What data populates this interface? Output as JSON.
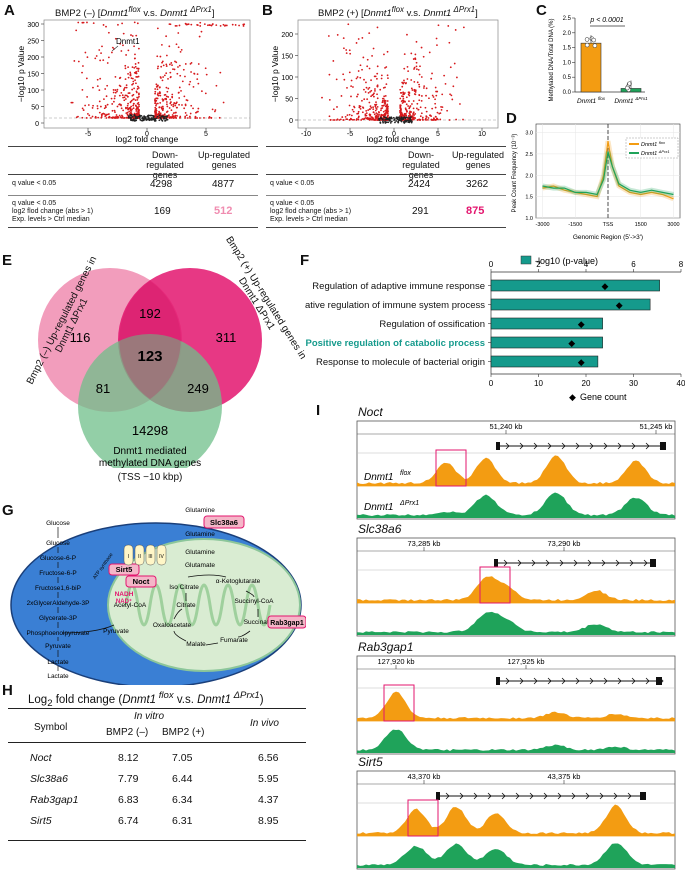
{
  "panel_labels": {
    "A": "A",
    "B": "B",
    "C": "C",
    "D": "D",
    "E": "E",
    "F": "F",
    "G": "G",
    "H": "H",
    "I": "I"
  },
  "colors": {
    "red": "#d7191c",
    "orange": "#f39c12",
    "green": "#1fa35a",
    "teal": "#159a8c",
    "pink": "#f08cb0",
    "magenta": "#e3156e",
    "olive": "#6fbf8a",
    "blue_cell": "#3a7fd4",
    "mito": "#cfe8c8"
  },
  "panelA": {
    "title_prefix": "BMP2 (–) [",
    "title_gene1": "Dnmt1",
    "title_sup1": "flox",
    "title_vs": " v.s. ",
    "title_gene2": "Dnmt1",
    "title_sup2": " ΔPrx1",
    "title_suffix": "]",
    "ylabel": "−log10 p Value",
    "xlabel": "log2 fold change",
    "annotation": "Dnmt1",
    "yticks": [
      "300",
      "250",
      "200",
      "150",
      "100",
      "50",
      "0"
    ],
    "xticks": [
      "-5",
      "0",
      "5"
    ],
    "col1": "Down-regulated genes",
    "col2": "Up-regulated genes",
    "row1": "q value < 0.05",
    "row2a": "q value < 0.05",
    "row2b": "log2 flod change (abs > 1)",
    "row2c": "Exp. levels > Ctrl median",
    "v11": "4298",
    "v12": "4877",
    "v21": "169",
    "v22": "512"
  },
  "panelB": {
    "title_prefix": "BMP2 (+) [",
    "title_gene1": "Dnmt1",
    "title_sup1": "flox",
    "title_vs": " v.s. ",
    "title_gene2": "Dnmt1",
    "title_sup2": " ΔPrx1",
    "title_suffix": "]",
    "ylabel": "−log10 p Value",
    "xlabel": "log2 fold change",
    "yticks": [
      "200",
      "150",
      "100",
      "50",
      "0"
    ],
    "xticks": [
      "-10",
      "-5",
      "0",
      "5",
      "10"
    ],
    "col1": "Down-regulated genes",
    "col2": "Up-regulated genes",
    "row1": "q value < 0.05",
    "row2a": "q value < 0.05",
    "row2b": "log2 flod change (abs > 1)",
    "row2c": "Exp. levels > Ctrl median",
    "v11": "2424",
    "v12": "3262",
    "v21": "291",
    "v22": "875"
  },
  "panelC": {
    "ylabel": "Methylated DNA/Total DNA (%)",
    "pvalue": "p < 0.0001",
    "yticks": [
      "2.5",
      "2.0",
      "1.5",
      "1.0",
      "0.5",
      "0.0"
    ],
    "xlabels": [
      "Dnmt1 flox",
      "Dnmt1 ΔPrx1"
    ]
  },
  "panelD": {
    "ylabel": "Peak Count Frequency (10⁻³)",
    "xlabel": "Genomic Region (5'->3')",
    "xticks": [
      "-3000",
      "-1500",
      "TSS",
      "1500",
      "3000"
    ],
    "yticks": [
      "3.0",
      "2.5",
      "2.0",
      "1.5",
      "1.0"
    ],
    "legend": [
      "Dnmt1 flox",
      "Dnmt1 ΔPrx1"
    ]
  },
  "panelE": {
    "label_left": "Bmp2 (–) Up-regulated genes in Dnmt1 ΔPrx1",
    "label_right": "Bmp2 (+) Up-regulated genes in Dnmt1 ΔPrx1",
    "label_bottom1": "Dnmt1 mediated",
    "label_bottom2": "methylated DNA genes",
    "label_bottom3": "(TSS −10 kbp)",
    "n_left": "116",
    "n_right": "311",
    "n_top": "192",
    "n_center": "123",
    "n_lb": "81",
    "n_rb": "249",
    "n_bottom": "14298"
  },
  "panelF": {
    "legend": "-log10 (p-value)",
    "xlabel": "Gene count",
    "top_ticks": [
      "0",
      "2",
      "4",
      "6",
      "8"
    ],
    "bottom_ticks": [
      "0",
      "10",
      "20",
      "30",
      "40"
    ],
    "terms": [
      "Regulation of adaptive immune response",
      "Negative regulation of immune system process",
      "Regulation of ossification",
      "Positive regulation of catabolic process",
      "Response to molecule of bacterial origin"
    ]
  },
  "chart_data": [
    {
      "type": "bar",
      "title": "Panel C",
      "categories": [
        "Dnmt1 flox",
        "Dnmt1 ΔPrx1"
      ],
      "values": [
        1.65,
        0.12
      ],
      "ylabel": "Methylated DNA/Total DNA (%)",
      "ylim": [
        0,
        2.5
      ]
    },
    {
      "type": "bar",
      "title": "Panel F",
      "categories": [
        "Regulation of adaptive immune response",
        "Negative regulation of immune system process",
        "Regulation of ossification",
        "Positive regulation of catabolic process",
        "Response to molecule of bacterial origin"
      ],
      "series": [
        {
          "name": "-log10 (p-value)",
          "values": [
            7.1,
            6.7,
            4.7,
            4.7,
            4.5
          ]
        },
        {
          "name": "Gene count",
          "values": [
            24,
            27,
            19,
            17,
            19
          ]
        }
      ],
      "xlim_top": [
        0,
        8
      ],
      "xlim_bottom": [
        0,
        40
      ]
    },
    {
      "type": "line",
      "title": "Panel D",
      "x": [
        -3000,
        -2500,
        -2000,
        -1500,
        -1000,
        -500,
        -200,
        0,
        200,
        500,
        1000,
        1500,
        2000,
        2500,
        3000
      ],
      "series": [
        {
          "name": "Dnmt1 flox",
          "values": [
            1.7,
            1.75,
            1.65,
            1.6,
            1.55,
            1.5,
            2.0,
            2.8,
            2.2,
            1.75,
            1.6,
            1.55,
            1.6,
            1.55,
            1.45
          ]
        },
        {
          "name": "Dnmt1 ΔPrx1",
          "values": [
            1.75,
            1.7,
            1.7,
            1.6,
            1.6,
            1.55,
            1.9,
            2.55,
            2.2,
            1.8,
            1.65,
            1.6,
            1.65,
            1.6,
            1.55
          ]
        }
      ],
      "ylim": [
        1.0,
        3.2
      ]
    }
  ],
  "panelG": {
    "left_metabolites": [
      "Glucose",
      "Glucose",
      "Glucose-6-P",
      "Fructose-6-P",
      "Fructose1,6-biP",
      "2xGlycerAldehyde-3P",
      "Glycerate-3P",
      "Phosphoenolpyruvate",
      "Pyruvate",
      "Lactate",
      "Lactate"
    ],
    "glutamine_top": "Glutamine",
    "glutamine2": "Glutamine",
    "glutamine3": "Glutamine",
    "glutamate": "Glutamate",
    "akg": "α-Ketoglutarate",
    "succinyl": "Succinyl-CoA",
    "succinate": "Succinate",
    "fumarate": "Fumarate",
    "malate": "Malate",
    "oxaloacetate": "Oxaloacetate",
    "citrate": "Citrate",
    "isocitrate": "Iso Citrate",
    "acetylcoa": "Acetyl-CoA",
    "pyruvate_m": "Pyruvate",
    "nadh": "NADH",
    "nad": "NAD⁺",
    "atp": "ATP synthase",
    "complexes": [
      "I",
      "II",
      "III",
      "IV"
    ],
    "box_slc": "Slc38a6",
    "box_sirt5": "Sirt5",
    "box_noct": "Noct",
    "box_rab": "Rab3gap1"
  },
  "panelH": {
    "title_main": "Log",
    "title_sub": "2",
    "title_rest": " fold change (",
    "title_gene1": "Dnmt1",
    "title_sup1": " flox",
    "title_vs": " v.s. ",
    "title_gene2": "Dnmt1",
    "title_sup2": " ΔPrx1",
    "title_end": ")",
    "col_symbol": "Symbol",
    "col_invitro": "In vitro",
    "col_invivo": "In vivo",
    "col_b2m": "BMP2 (–)",
    "col_b2p": "BMP2 (+)",
    "rows": [
      {
        "symbol": "Noct",
        "b2m": "8.12",
        "b2p": "7.05",
        "invivo": "6.56"
      },
      {
        "symbol": "Slc38a6",
        "b2m": "7.79",
        "b2p": "6.44",
        "invivo": "5.95"
      },
      {
        "symbol": "Rab3gap1",
        "b2m": "6.83",
        "b2p": "6.34",
        "invivo": "4.37"
      },
      {
        "symbol": "Sirt5",
        "b2m": "6.74",
        "b2p": "6.31",
        "invivo": "8.95"
      }
    ]
  },
  "panelI": {
    "tracks": [
      {
        "gene": "Noct",
        "ticks": [
          "51,240 kb",
          "51,245 kb"
        ],
        "flox": "Dnmt1",
        "flox_sup": " flox",
        "ko": "Dnmt1",
        "ko_sup": " ΔPrx1"
      },
      {
        "gene": "Slc38a6",
        "ticks": [
          "73,285 kb",
          "73,290 kb"
        ]
      },
      {
        "gene": "Rab3gap1",
        "ticks": [
          "127,920 kb",
          "127,925 kb"
        ]
      },
      {
        "gene": "Sirt5",
        "ticks": [
          "43,370 kb",
          "43,375 kb"
        ]
      }
    ]
  }
}
